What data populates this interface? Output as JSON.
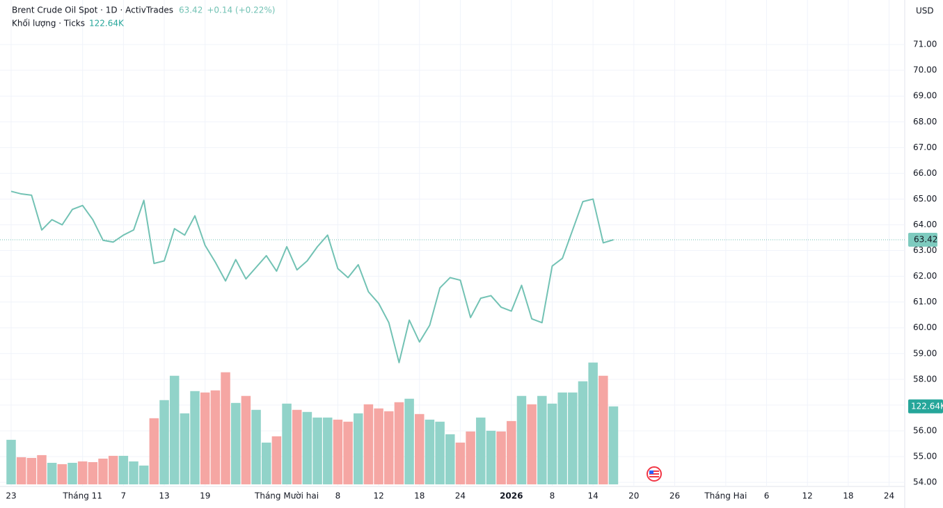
{
  "chart_data": {
    "type": "line",
    "title": "Brent Crude Oil Spot · 1D · ActivTrades",
    "change": "+0.14 (+0.22%)",
    "volume_title": "Khối lượng · Ticks",
    "volume_label": "122.64K",
    "currency": "USD",
    "color": "#72c2b4",
    "values": [
      65.3,
      65.2,
      65.15,
      63.8,
      64.2,
      64.0,
      64.6,
      64.75,
      64.2,
      63.4,
      63.33,
      63.6,
      63.8,
      64.95,
      62.5,
      62.6,
      63.85,
      63.6,
      64.35,
      63.2,
      62.55,
      61.82,
      62.65,
      61.9,
      62.35,
      62.8,
      62.2,
      63.15,
      62.25,
      62.6,
      63.15,
      63.6,
      62.3,
      61.95,
      62.45,
      61.4,
      60.95,
      60.2,
      58.65,
      60.3,
      59.45,
      60.1,
      61.55,
      61.95,
      61.85,
      60.4,
      61.15,
      61.25,
      60.8,
      60.65,
      61.65,
      60.35,
      60.2,
      62.4,
      62.7,
      63.8,
      64.9,
      65.0,
      63.3,
      63.42
    ],
    "volume": {
      "values": [
        70.1,
        42.7,
        41.6,
        46.0,
        33.9,
        31.8,
        33.9,
        36.1,
        35.0,
        40.5,
        44.9,
        44.9,
        36.1,
        29.6,
        104.0,
        132.5,
        170.8,
        111.7,
        146.7,
        144.5,
        147.8,
        176.3,
        128.1,
        139.1,
        117.2,
        65.7,
        75.6,
        127.0,
        117.2,
        113.9,
        105.1,
        105.1,
        101.8,
        98.6,
        111.7,
        125.9,
        119.4,
        115.0,
        129.2,
        134.7,
        110.6,
        101.8,
        98.6,
        78.8,
        65.7,
        83.2,
        105.1,
        84.3,
        83.2,
        99.6,
        139.1,
        125.9,
        139.1,
        127.0,
        144.5,
        144.5,
        162.1,
        191.6,
        170.8,
        122.64
      ],
      "colors": [
        "#91d3c9",
        "#f5a6a3",
        "#f5a6a3",
        "#f5a6a3",
        "#91d3c9",
        "#f5a6a3",
        "#91d3c9",
        "#f5a6a3",
        "#f5a6a3",
        "#f5a6a3",
        "#f5a6a3",
        "#91d3c9",
        "#91d3c9",
        "#91d3c9",
        "#f5a6a3",
        "#91d3c9",
        "#91d3c9",
        "#91d3c9",
        "#91d3c9",
        "#f5a6a3",
        "#f5a6a3",
        "#f5a6a3",
        "#91d3c9",
        "#f5a6a3",
        "#91d3c9",
        "#91d3c9",
        "#f5a6a3",
        "#91d3c9",
        "#f5a6a3",
        "#91d3c9",
        "#91d3c9",
        "#91d3c9",
        "#f5a6a3",
        "#f5a6a3",
        "#91d3c9",
        "#f5a6a3",
        "#f5a6a3",
        "#f5a6a3",
        "#f5a6a3",
        "#91d3c9",
        "#f5a6a3",
        "#91d3c9",
        "#91d3c9",
        "#91d3c9",
        "#f5a6a3",
        "#f5a6a3",
        "#91d3c9",
        "#91d3c9",
        "#f5a6a3",
        "#f5a6a3",
        "#91d3c9",
        "#f5a6a3",
        "#91d3c9",
        "#91d3c9",
        "#91d3c9",
        "#91d3c9",
        "#91d3c9",
        "#91d3c9",
        "#f5a6a3",
        "#91d3c9"
      ],
      "ylim": [
        0,
        200
      ]
    },
    "xlim": [
      -1.09,
      87.53
    ],
    "ylim": [
      53.84,
      72.73
    ],
    "yticks": [
      {
        "value": 54,
        "label": "54.00"
      },
      {
        "value": 55,
        "label": "55.00"
      },
      {
        "value": 56,
        "label": "56.00"
      },
      {
        "value": 57,
        "label": "57.00"
      },
      {
        "value": 58,
        "label": "58.00"
      },
      {
        "value": 59,
        "label": "59.00"
      },
      {
        "value": 60,
        "label": "60.00"
      },
      {
        "value": 61,
        "label": "61.00"
      },
      {
        "value": 62,
        "label": "62.00"
      },
      {
        "value": 63,
        "label": "63.00"
      },
      {
        "value": 64,
        "label": "64.00"
      },
      {
        "value": 65,
        "label": "65.00"
      },
      {
        "value": 66,
        "label": "66.00"
      },
      {
        "value": 67,
        "label": "67.00"
      },
      {
        "value": 68,
        "label": "68.00"
      },
      {
        "value": 69,
        "label": "69.00"
      },
      {
        "value": 70,
        "label": "70.00"
      },
      {
        "value": 71,
        "label": "71.00"
      }
    ],
    "xticks": [
      {
        "value": 0,
        "label": "23"
      },
      {
        "value": 7,
        "label": "Tháng 11"
      },
      {
        "value": 11,
        "label": "7"
      },
      {
        "value": 15,
        "label": "13"
      },
      {
        "value": 19,
        "label": "19"
      },
      {
        "value": 27,
        "label": "Tháng Mười hai"
      },
      {
        "value": 32,
        "label": "8"
      },
      {
        "value": 36,
        "label": "12"
      },
      {
        "value": 40,
        "label": "18"
      },
      {
        "value": 44,
        "label": "24"
      },
      {
        "value": 49,
        "label": "2026",
        "bold": true
      },
      {
        "value": 53,
        "label": "8"
      },
      {
        "value": 57,
        "label": "14"
      },
      {
        "value": 61,
        "label": "20"
      },
      {
        "value": 65,
        "label": "26"
      },
      {
        "value": 70,
        "label": "Tháng Hai"
      },
      {
        "value": 74,
        "label": "6"
      },
      {
        "value": 78,
        "label": "12"
      },
      {
        "value": 82,
        "label": "18"
      },
      {
        "value": 86,
        "label": "24"
      }
    ],
    "grid": true
  }
}
